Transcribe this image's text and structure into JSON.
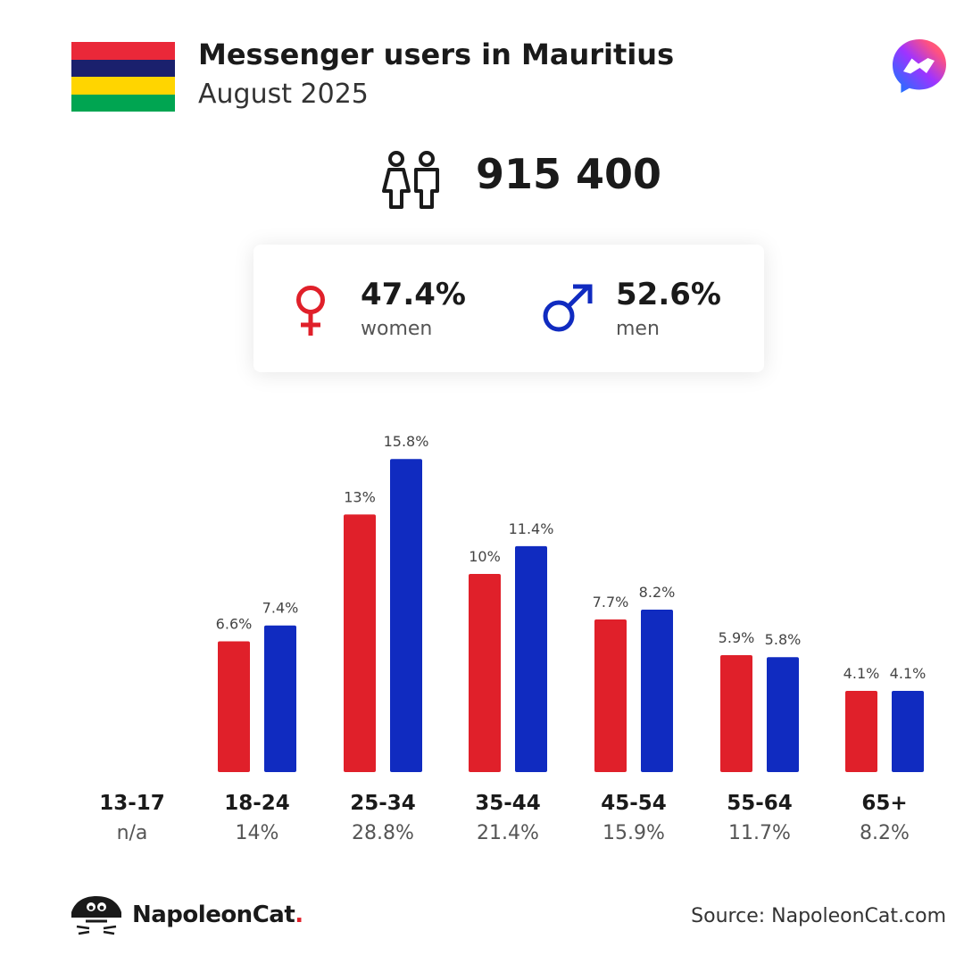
{
  "header": {
    "title": "Messenger users in Mauritius",
    "subtitle": "August 2025",
    "flag_colors": [
      "#EA2839",
      "#1A206D",
      "#FFD500",
      "#00A551"
    ]
  },
  "totals": {
    "users": "915 400",
    "icon": "people-icon"
  },
  "gender": {
    "women_pct": "47.4%",
    "women_label": "women",
    "men_pct": "52.6%",
    "men_label": "men",
    "women_color": "#E0202A",
    "men_color": "#102BC0"
  },
  "chart_data": {
    "type": "bar",
    "categories": [
      "13-17",
      "18-24",
      "25-34",
      "35-44",
      "45-54",
      "55-64",
      "65+"
    ],
    "category_totals": [
      "n/a",
      "14%",
      "28.8%",
      "21.4%",
      "15.9%",
      "11.7%",
      "8.2%"
    ],
    "series": [
      {
        "name": "women",
        "color": "#E0202A",
        "values": [
          null,
          6.6,
          13,
          10,
          7.7,
          5.9,
          4.1
        ],
        "labels": [
          "",
          "6.6%",
          "13%",
          "10%",
          "7.7%",
          "5.9%",
          "4.1%"
        ]
      },
      {
        "name": "men",
        "color": "#102BC0",
        "values": [
          null,
          7.4,
          15.8,
          11.4,
          8.2,
          5.8,
          4.1
        ],
        "labels": [
          "",
          "7.4%",
          "15.8%",
          "11.4%",
          "8.2%",
          "5.8%",
          "4.1%"
        ]
      }
    ],
    "ylim": [
      0,
      16
    ]
  },
  "footer": {
    "brand": "NapoleonCat",
    "brand_dot": ".",
    "source": "Source: NapoleonCat.com"
  }
}
